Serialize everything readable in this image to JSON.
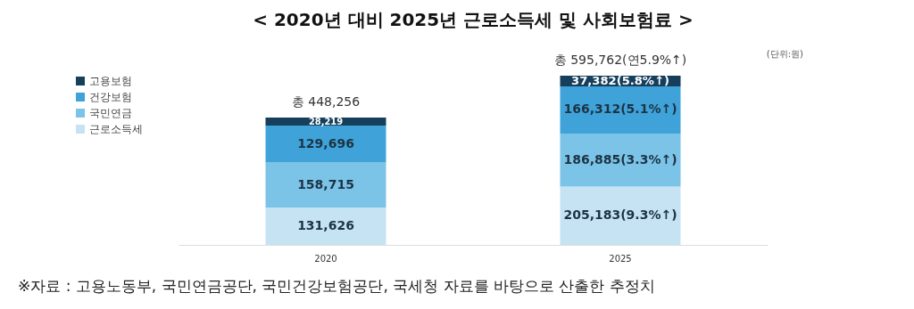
{
  "chart_data": {
    "type": "bar",
    "title": "< 2020년 대비 2025년 근로소득세 및 사회보험료 >",
    "categories": [
      "2020",
      "2025"
    ],
    "stacked": true,
    "legend": "left",
    "data_labels": true,
    "series": [
      {
        "name": "근로소득세",
        "color": "#c5e3f3",
        "values": [
          131626,
          205183
        ],
        "value_labels": [
          "131,626",
          "205,183(9.3%↑)"
        ]
      },
      {
        "name": "국민연금",
        "color": "#7cc3e8",
        "values": [
          158715,
          186885
        ],
        "value_labels": [
          "158,715",
          "186,885(3.3%↑)"
        ]
      },
      {
        "name": "건강보험",
        "color": "#3fa3d9",
        "values": [
          129696,
          166312
        ],
        "value_labels": [
          "129,696",
          "166,312(5.1%↑)"
        ]
      },
      {
        "name": "고용보험",
        "color": "#163f5c",
        "values": [
          28219,
          37382
        ],
        "value_labels": [
          "28,219",
          "37,382(5.8%↑)"
        ]
      }
    ],
    "totals": [
      "총 448,256",
      "총 595,762(연5.9%↑)"
    ],
    "annotations": [
      "(단위:원)",
      "※자료 : 고용노동부, 국민연금공단, 국민건강보험공단, 국세청 자료를 바탕으로 산출한 추정치"
    ]
  }
}
